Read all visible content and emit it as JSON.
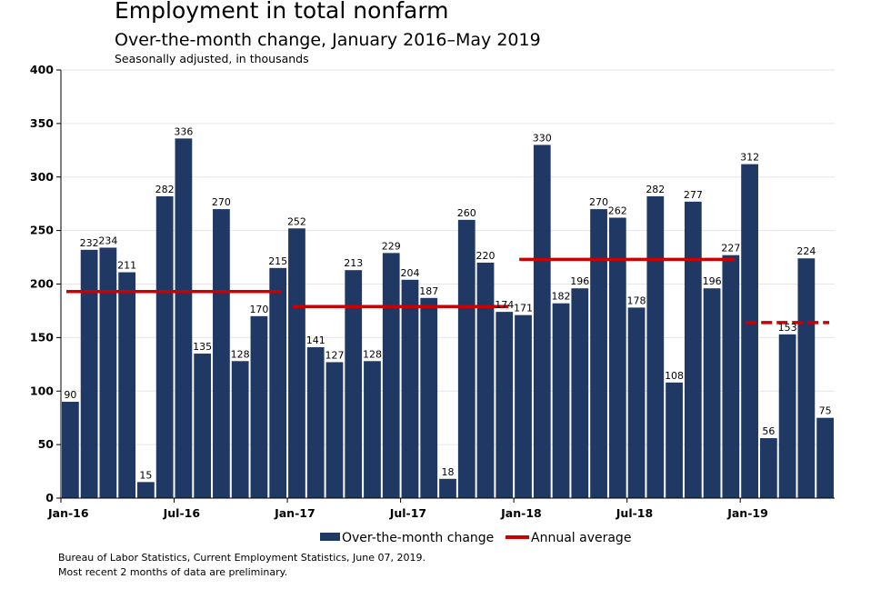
{
  "chart_data": {
    "type": "bar",
    "title": "Employment in total nonfarm",
    "subtitle": "Over-the-month change, January 2016–May 2019",
    "note": "Seasonally adjusted, in thousands",
    "ylim": [
      0,
      400
    ],
    "yticks": [
      0,
      50,
      100,
      150,
      200,
      250,
      300,
      350,
      400
    ],
    "xtick_labels": [
      {
        "label": "Jan-16",
        "index": 0
      },
      {
        "label": "Jul-16",
        "index": 6
      },
      {
        "label": "Jan-17",
        "index": 12
      },
      {
        "label": "Jul-17",
        "index": 18
      },
      {
        "label": "Jan-18",
        "index": 24
      },
      {
        "label": "Jul-18",
        "index": 30
      },
      {
        "label": "Jan-19",
        "index": 36
      }
    ],
    "categories": [
      "Jan-16",
      "Feb-16",
      "Mar-16",
      "Apr-16",
      "May-16",
      "Jun-16",
      "Jul-16",
      "Aug-16",
      "Sep-16",
      "Oct-16",
      "Nov-16",
      "Dec-16",
      "Jan-17",
      "Feb-17",
      "Mar-17",
      "Apr-17",
      "May-17",
      "Jun-17",
      "Jul-17",
      "Aug-17",
      "Sep-17",
      "Oct-17",
      "Nov-17",
      "Dec-17",
      "Jan-18",
      "Feb-18",
      "Mar-18",
      "Apr-18",
      "May-18",
      "Jun-18",
      "Jul-18",
      "Aug-18",
      "Sep-18",
      "Oct-18",
      "Nov-18",
      "Dec-18",
      "Jan-19",
      "Feb-19",
      "Mar-19",
      "Apr-19",
      "May-19"
    ],
    "series": [
      {
        "name": "Over-the-month change",
        "color": "#1f3864",
        "values": [
          90,
          232,
          234,
          211,
          15,
          282,
          336,
          135,
          270,
          128,
          170,
          215,
          252,
          141,
          127,
          213,
          128,
          229,
          204,
          187,
          18,
          260,
          220,
          174,
          171,
          330,
          182,
          196,
          270,
          262,
          178,
          282,
          108,
          277,
          196,
          227,
          312,
          56,
          153,
          224,
          75
        ]
      }
    ],
    "annual_averages": [
      {
        "year": "2016",
        "value": 193,
        "start_index": 0,
        "end_index": 11,
        "dashed": false
      },
      {
        "year": "2017",
        "value": 179,
        "start_index": 12,
        "end_index": 23,
        "dashed": false
      },
      {
        "year": "2018",
        "value": 223,
        "start_index": 24,
        "end_index": 35,
        "dashed": false
      },
      {
        "year": "2019",
        "value": 164,
        "start_index": 36,
        "end_index": 40,
        "dashed": true
      }
    ],
    "legend": [
      {
        "label": "Over-the-month change",
        "kind": "bar",
        "color": "#1f3864"
      },
      {
        "label": "Annual average",
        "kind": "line",
        "color": "#cc0000"
      }
    ],
    "source": "Bureau of Labor Statistics, Current Employment Statistics, June 07, 2019.",
    "footnote": "Most recent 2 months of data are preliminary."
  }
}
